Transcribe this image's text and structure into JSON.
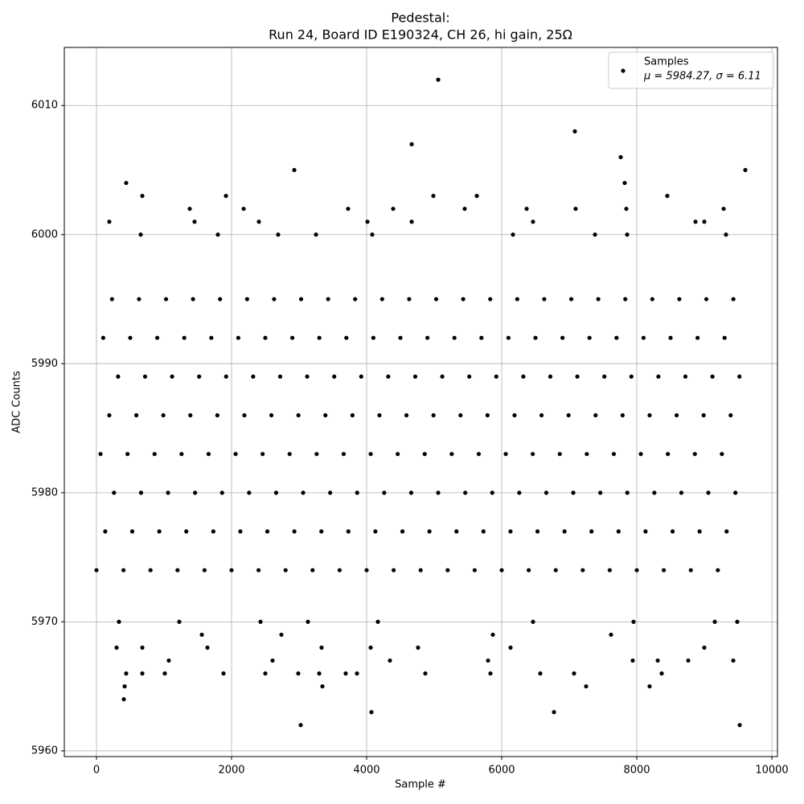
{
  "chart_data": {
    "type": "scatter",
    "title": "Pedestal:",
    "subtitle": "Run 24, Board ID E190324, CH 26, hi gain, 25Ω",
    "x_label": "Sample #",
    "y_label": "ADC Counts",
    "xlim": [
      -476,
      10083
    ],
    "ylim": [
      5959.56,
      6014.5
    ],
    "xticks": [
      0,
      2000,
      4000,
      6000,
      8000,
      10000
    ],
    "yticks": [
      5960,
      5970,
      5980,
      5990,
      6000,
      6010
    ],
    "grid": true,
    "legend": "upper right",
    "legend_note": "μ = 5984.27, σ = 6.11",
    "series": [
      {
        "name": "Samples",
        "color": "#000000",
        "x": [
          5060,
          7083,
          4667,
          7762,
          2929,
          9607,
          440,
          7821,
          679,
          1917,
          4988,
          5631,
          8452,
          1381,
          2179,
          3726,
          4393,
          5452,
          6369,
          7095,
          7845,
          9286,
          190,
          1452,
          2405,
          4012,
          4667,
          6464,
          8869,
          9000,
          655,
          1798,
          2690,
          3250,
          4083,
          6167,
          7381,
          9321,
          7857,
          3024,
          9524,
          4071,
          6774,
          405,
          3345,
          7250,
          8190,
          417,
          440,
          679,
          1012,
          1881,
          2500,
          2988,
          3298,
          3690,
          3857,
          4869,
          5833,
          6571,
          7071,
          8369,
          1071,
          2607,
          4345,
          5798,
          7940,
          8310,
          8762,
          9429,
          298,
          679,
          1643,
          3333,
          4060,
          4762,
          6131,
          9000,
          7619,
          1560,
          2738,
          5869,
          333,
          1226,
          2429,
          3131,
          4167,
          6464,
          9155,
          9488,
          7952,
          0,
          400,
          800,
          1200,
          1600,
          2000,
          2400,
          2800,
          3200,
          3600,
          4000,
          4400,
          4800,
          5200,
          5600,
          6000,
          6400,
          6800,
          7200,
          7600,
          8000,
          8400,
          8800,
          9200,
          130,
          530,
          930,
          1330,
          1730,
          2130,
          2530,
          2930,
          3330,
          3730,
          4130,
          4530,
          4930,
          5330,
          5730,
          6130,
          6530,
          6930,
          7330,
          7730,
          8130,
          8530,
          8930,
          9330,
          260,
          660,
          1060,
          1460,
          1860,
          2260,
          2660,
          3060,
          3460,
          3860,
          4260,
          4660,
          5060,
          5460,
          5860,
          6260,
          6660,
          7060,
          7460,
          7860,
          8260,
          8660,
          9060,
          9460,
          60,
          460,
          860,
          1260,
          1660,
          2060,
          2460,
          2860,
          3260,
          3660,
          4060,
          4460,
          4860,
          5260,
          5660,
          6060,
          6460,
          6860,
          7260,
          7660,
          8060,
          8460,
          8860,
          9260,
          190,
          590,
          990,
          1390,
          1790,
          2190,
          2590,
          2990,
          3390,
          3790,
          4190,
          4590,
          4990,
          5390,
          5790,
          6190,
          6590,
          6990,
          7390,
          7790,
          8190,
          8590,
          8990,
          9390,
          320,
          720,
          1120,
          1520,
          1920,
          2320,
          2720,
          3120,
          3520,
          3920,
          4320,
          4720,
          5120,
          5520,
          5920,
          6320,
          6720,
          7120,
          7520,
          7920,
          8320,
          8720,
          9120,
          9520,
          100,
          500,
          900,
          1300,
          1700,
          2100,
          2500,
          2900,
          3300,
          3700,
          4100,
          4500,
          4900,
          5300,
          5700,
          6100,
          6500,
          6900,
          7300,
          7700,
          8100,
          8500,
          8900,
          9300,
          230,
          630,
          1030,
          1430,
          1830,
          2230,
          2630,
          3030,
          3430,
          3830,
          4230,
          4630,
          5030,
          5430,
          5830,
          6230,
          6630,
          7030,
          7430,
          7830,
          8230,
          8630,
          9030,
          9430
        ],
        "values": [
          6012,
          6008,
          6007,
          6006,
          6005,
          6005,
          6004,
          6004,
          6003,
          6003,
          6003,
          6003,
          6003,
          6002,
          6002,
          6002,
          6002,
          6002,
          6002,
          6002,
          6002,
          6002,
          6001,
          6001,
          6001,
          6001,
          6001,
          6001,
          6001,
          6001,
          6000,
          6000,
          6000,
          6000,
          6000,
          6000,
          6000,
          6000,
          6000,
          5962,
          5962,
          5963,
          5963,
          5964,
          5965,
          5965,
          5965,
          5965,
          5966,
          5966,
          5966,
          5966,
          5966,
          5966,
          5966,
          5966,
          5966,
          5966,
          5966,
          5966,
          5966,
          5966,
          5967,
          5967,
          5967,
          5967,
          5967,
          5967,
          5967,
          5967,
          5968,
          5968,
          5968,
          5968,
          5968,
          5968,
          5968,
          5968,
          5969,
          5969,
          5969,
          5969,
          5970,
          5970,
          5970,
          5970,
          5970,
          5970,
          5970,
          5970,
          5970,
          5974,
          5974,
          5974,
          5974,
          5974,
          5974,
          5974,
          5974,
          5974,
          5974,
          5974,
          5974,
          5974,
          5974,
          5974,
          5974,
          5974,
          5974,
          5974,
          5974,
          5974,
          5974,
          5974,
          5974,
          5977,
          5977,
          5977,
          5977,
          5977,
          5977,
          5977,
          5977,
          5977,
          5977,
          5977,
          5977,
          5977,
          5977,
          5977,
          5977,
          5977,
          5977,
          5977,
          5977,
          5977,
          5977,
          5977,
          5977,
          5980,
          5980,
          5980,
          5980,
          5980,
          5980,
          5980,
          5980,
          5980,
          5980,
          5980,
          5980,
          5980,
          5980,
          5980,
          5980,
          5980,
          5980,
          5980,
          5980,
          5980,
          5980,
          5980,
          5980,
          5983,
          5983,
          5983,
          5983,
          5983,
          5983,
          5983,
          5983,
          5983,
          5983,
          5983,
          5983,
          5983,
          5983,
          5983,
          5983,
          5983,
          5983,
          5983,
          5983,
          5983,
          5983,
          5983,
          5983,
          5986,
          5986,
          5986,
          5986,
          5986,
          5986,
          5986,
          5986,
          5986,
          5986,
          5986,
          5986,
          5986,
          5986,
          5986,
          5986,
          5986,
          5986,
          5986,
          5986,
          5986,
          5986,
          5986,
          5986,
          5989,
          5989,
          5989,
          5989,
          5989,
          5989,
          5989,
          5989,
          5989,
          5989,
          5989,
          5989,
          5989,
          5989,
          5989,
          5989,
          5989,
          5989,
          5989,
          5989,
          5989,
          5989,
          5989,
          5989,
          5992,
          5992,
          5992,
          5992,
          5992,
          5992,
          5992,
          5992,
          5992,
          5992,
          5992,
          5992,
          5992,
          5992,
          5992,
          5992,
          5992,
          5992,
          5992,
          5992,
          5992,
          5992,
          5992,
          5992,
          5995,
          5995,
          5995,
          5995,
          5995,
          5995,
          5995,
          5995,
          5995,
          5995,
          5995,
          5995,
          5995,
          5995,
          5995,
          5995,
          5995,
          5995,
          5995,
          5995,
          5995,
          5995,
          5995,
          5995
        ]
      }
    ]
  }
}
